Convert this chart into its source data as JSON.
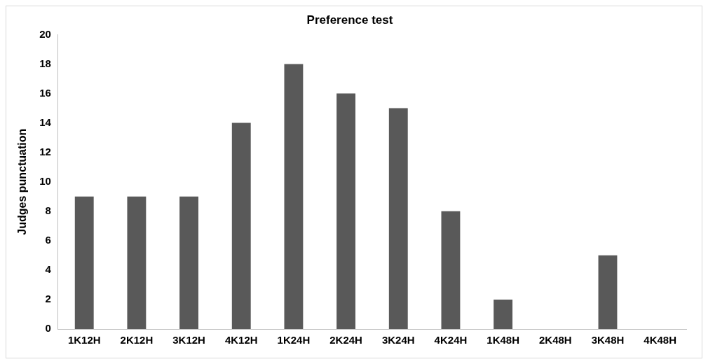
{
  "chart_data": {
    "type": "bar",
    "title": "Preference test",
    "ylabel": "Judges punctuation",
    "categories": [
      "1K12H",
      "2K12H",
      "3K12H",
      "4K12H",
      "1K24H",
      "2K24H",
      "3K24H",
      "4K24H",
      "1K48H",
      "2K48H",
      "3K48H",
      "4K48H"
    ],
    "values": [
      9,
      9,
      9,
      14,
      18,
      16,
      15,
      8,
      2,
      0,
      5,
      0
    ],
    "color": "#595959",
    "ylim": [
      0,
      20
    ],
    "yticks": [
      0,
      2,
      4,
      6,
      8,
      10,
      12,
      14,
      16,
      18,
      20
    ],
    "grid": false,
    "legend": false
  }
}
